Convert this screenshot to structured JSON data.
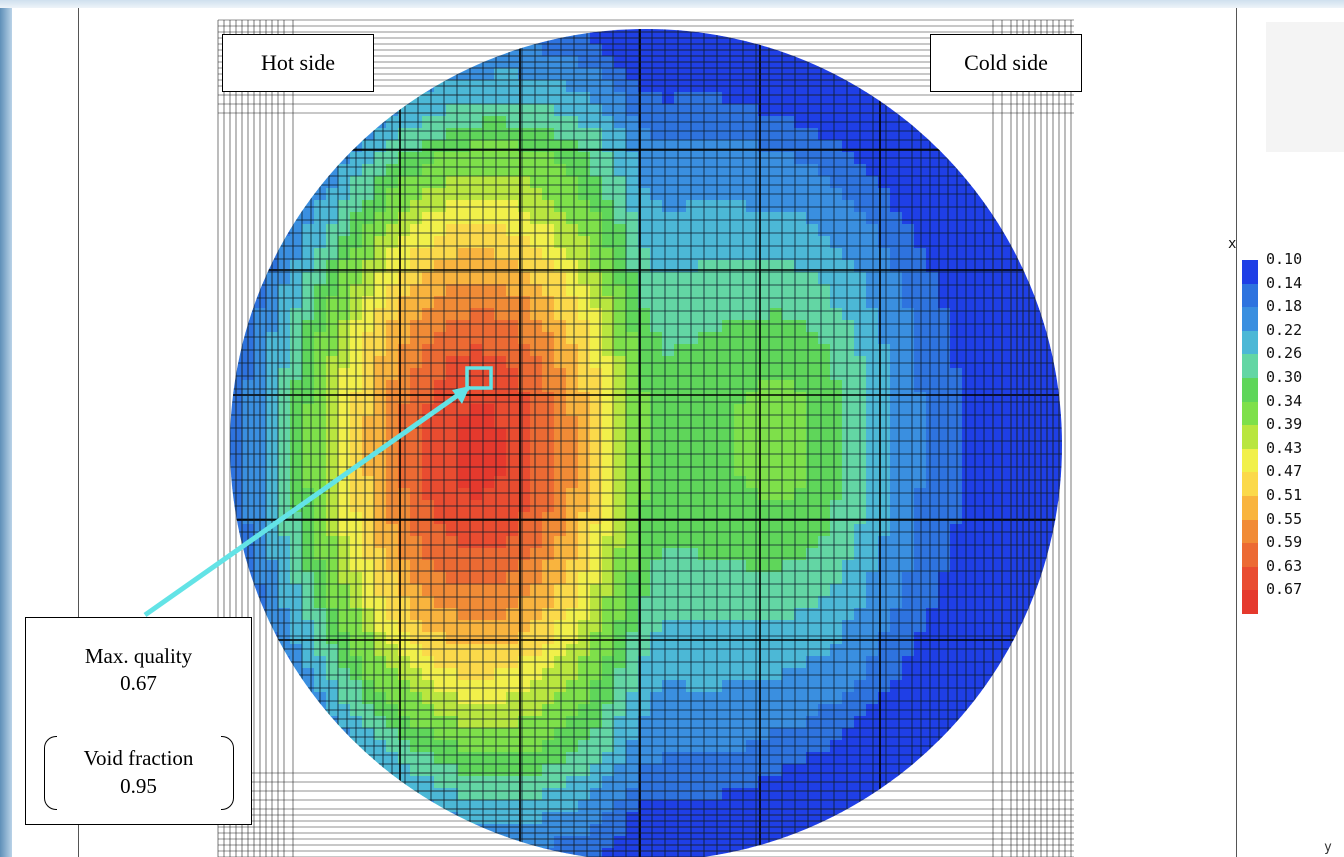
{
  "labels": {
    "hot_side": "Hot side",
    "cold_side": "Cold side",
    "max_quality_label": "Max. quality",
    "max_quality_value": "0.67",
    "void_fraction_label": "Void fraction",
    "void_fraction_value": "0.95",
    "corner_mark": "y"
  },
  "chart_data": {
    "type": "heatmap",
    "title": "",
    "variable": "x",
    "legend_title": "x",
    "legend_placement": "right",
    "levels": [
      0.1,
      0.14,
      0.18,
      0.22,
      0.26,
      0.3,
      0.34,
      0.39,
      0.43,
      0.47,
      0.51,
      0.55,
      0.59,
      0.63,
      0.67
    ],
    "level_labels": [
      "0.10",
      "0.14",
      "0.18",
      "0.22",
      "0.26",
      "0.30",
      "0.34",
      "0.39",
      "0.43",
      "0.47",
      "0.51",
      "0.55",
      "0.59",
      "0.63",
      "0.67"
    ],
    "colors": [
      "#1f3fe6",
      "#2e73df",
      "#3a8fe0",
      "#4cb8d6",
      "#63d6a4",
      "#5fd65a",
      "#7ee04a",
      "#b9e63f",
      "#f1f04a",
      "#fbd94a",
      "#f9b43e",
      "#f18b36",
      "#ec6a33",
      "#e94c30",
      "#e5392d"
    ],
    "max_quality": 0.67,
    "void_fraction": 0.95,
    "grid": true
  }
}
